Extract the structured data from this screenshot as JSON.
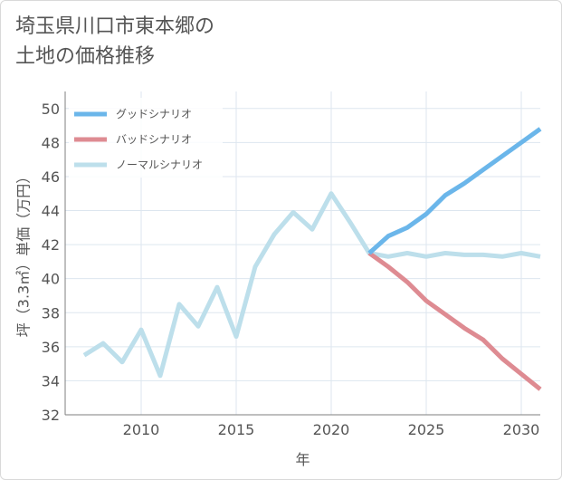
{
  "title_lines": [
    "埼玉県川口市東本郷の",
    "土地の価格推移"
  ],
  "chart_data": {
    "type": "line",
    "title": "埼玉県川口市東本郷の土地の価格推移",
    "xlabel": "年",
    "ylabel": "坪（3.3㎡）単価（万円）",
    "xlim": [
      2006,
      2031
    ],
    "ylim": [
      32,
      51
    ],
    "xticks": [
      2010,
      2015,
      2020,
      2025,
      2030
    ],
    "yticks": [
      32,
      34,
      36,
      38,
      40,
      42,
      44,
      46,
      48,
      50
    ],
    "grid": true,
    "legend_position": "top-left",
    "series": [
      {
        "name": "グッドシナリオ",
        "color": "#6bb6ea",
        "x": [
          2022,
          2023,
          2024,
          2025,
          2026,
          2027,
          2028,
          2029,
          2030,
          2031
        ],
        "values": [
          41.5,
          42.5,
          43.0,
          43.8,
          44.9,
          45.6,
          46.4,
          47.2,
          48.0,
          48.8
        ]
      },
      {
        "name": "バッドシナリオ",
        "color": "#de8b92",
        "x": [
          2022,
          2023,
          2024,
          2025,
          2026,
          2027,
          2028,
          2029,
          2030,
          2031
        ],
        "values": [
          41.5,
          40.7,
          39.8,
          38.7,
          37.9,
          37.1,
          36.4,
          35.3,
          34.4,
          33.5
        ]
      },
      {
        "name": "ノーマルシナリオ",
        "color": "#bddfeb",
        "x": [
          2007,
          2008,
          2009,
          2010,
          2011,
          2012,
          2013,
          2014,
          2015,
          2016,
          2017,
          2018,
          2019,
          2020,
          2021,
          2022,
          2023,
          2024,
          2025,
          2026,
          2027,
          2028,
          2029,
          2030,
          2031
        ],
        "values": [
          35.5,
          36.2,
          35.1,
          37.0,
          34.3,
          38.5,
          37.2,
          39.5,
          36.6,
          40.7,
          42.6,
          43.9,
          42.9,
          45.0,
          43.3,
          41.5,
          41.3,
          41.5,
          41.3,
          41.5,
          41.4,
          41.4,
          41.3,
          41.5,
          41.3
        ]
      }
    ]
  }
}
